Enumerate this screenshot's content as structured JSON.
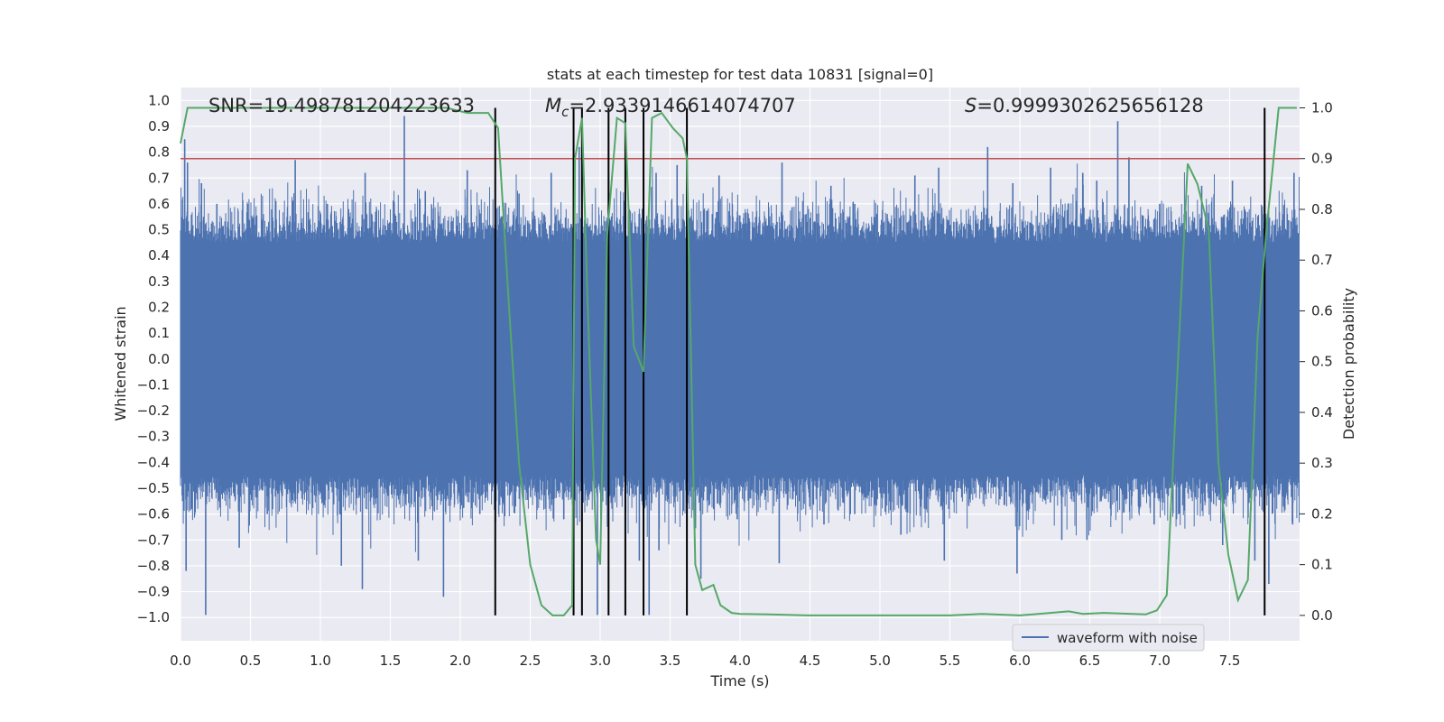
{
  "chart_data": {
    "type": "line",
    "title": "stats at each timestep for test data 10831 [signal=0]",
    "xlabel": "Time (s)",
    "ylabel": "Whitened strain",
    "y2label": "Detection probability",
    "xlim": [
      0.0,
      8.0
    ],
    "ylim": [
      -1.09,
      1.05
    ],
    "y2lim": [
      -0.05,
      1.04
    ],
    "grid": true,
    "legend_position": "bottom-right",
    "x_ticks": [
      "0.0",
      "0.5",
      "1.0",
      "1.5",
      "2.0",
      "2.5",
      "3.0",
      "3.5",
      "4.0",
      "4.5",
      "5.0",
      "5.5",
      "6.0",
      "6.5",
      "7.0",
      "7.5"
    ],
    "y_ticks": [
      "1.0",
      "0.9",
      "0.8",
      "0.7",
      "0.6",
      "0.5",
      "0.4",
      "0.3",
      "0.2",
      "0.1",
      "0.0",
      "−0.1",
      "−0.2",
      "−0.3",
      "−0.4",
      "−0.5",
      "−0.6",
      "−0.7",
      "−0.8",
      "−0.9",
      "−1.0"
    ],
    "y2_ticks": [
      "1.0",
      "0.9",
      "0.8",
      "0.7",
      "0.6",
      "0.5",
      "0.4",
      "0.3",
      "0.2",
      "0.1",
      "0.0"
    ],
    "annotations": {
      "snr": "SNR=19.498781204223633",
      "mc": "M_c=2.9339146614074707",
      "s": "S=0.9999302625656128"
    },
    "threshold": {
      "y2": 0.9,
      "color": "#c44e52"
    },
    "vertical_lines_x": [
      2.25,
      2.81,
      2.87,
      3.06,
      3.18,
      3.31,
      3.62,
      7.75
    ],
    "series": [
      {
        "name": "waveform with noise",
        "axis": "left",
        "color": "#4c72b0",
        "kind": "noise",
        "core_amplitude": 0.45,
        "spikes": [
          {
            "x": 0.03,
            "y": 0.85
          },
          {
            "x": 0.05,
            "y": 0.76
          },
          {
            "x": 0.15,
            "y": 0.68
          },
          {
            "x": 0.26,
            "y": 0.6
          },
          {
            "x": 0.48,
            "y": 0.6
          },
          {
            "x": 0.82,
            "y": 0.77
          },
          {
            "x": 1.05,
            "y": 0.6
          },
          {
            "x": 1.32,
            "y": 0.72
          },
          {
            "x": 1.6,
            "y": 0.94
          },
          {
            "x": 1.75,
            "y": 0.65
          },
          {
            "x": 2.05,
            "y": 0.73
          },
          {
            "x": 2.25,
            "y": 0.7
          },
          {
            "x": 2.42,
            "y": 0.64
          },
          {
            "x": 2.65,
            "y": 0.72
          },
          {
            "x": 2.85,
            "y": 0.82
          },
          {
            "x": 3.06,
            "y": 0.72
          },
          {
            "x": 3.4,
            "y": 0.72
          },
          {
            "x": 3.55,
            "y": 0.75
          },
          {
            "x": 3.85,
            "y": 0.71
          },
          {
            "x": 4.3,
            "y": 0.76
          },
          {
            "x": 4.65,
            "y": 0.67
          },
          {
            "x": 4.82,
            "y": 0.6
          },
          {
            "x": 5.25,
            "y": 0.71
          },
          {
            "x": 5.42,
            "y": 0.74
          },
          {
            "x": 5.77,
            "y": 0.82
          },
          {
            "x": 5.95,
            "y": 0.68
          },
          {
            "x": 6.22,
            "y": 0.74
          },
          {
            "x": 6.45,
            "y": 0.72
          },
          {
            "x": 6.55,
            "y": 0.69
          },
          {
            "x": 6.7,
            "y": 0.92
          },
          {
            "x": 6.78,
            "y": 0.78
          },
          {
            "x": 7.0,
            "y": 0.6
          },
          {
            "x": 7.3,
            "y": 0.67
          },
          {
            "x": 7.52,
            "y": 0.69
          },
          {
            "x": 7.96,
            "y": 0.72
          },
          {
            "x": 0.04,
            "y": -0.82
          },
          {
            "x": 0.18,
            "y": -0.99
          },
          {
            "x": 0.42,
            "y": -0.73
          },
          {
            "x": 0.62,
            "y": -0.6
          },
          {
            "x": 1.15,
            "y": -0.8
          },
          {
            "x": 1.3,
            "y": -0.89
          },
          {
            "x": 1.7,
            "y": -0.78
          },
          {
            "x": 1.88,
            "y": -0.92
          },
          {
            "x": 2.14,
            "y": -0.6
          },
          {
            "x": 2.74,
            "y": -0.62
          },
          {
            "x": 2.98,
            "y": -0.99
          },
          {
            "x": 3.28,
            "y": -0.78
          },
          {
            "x": 3.35,
            "y": -0.99
          },
          {
            "x": 3.42,
            "y": -0.74
          },
          {
            "x": 3.72,
            "y": -0.85
          },
          {
            "x": 3.98,
            "y": -0.62
          },
          {
            "x": 4.28,
            "y": -0.79
          },
          {
            "x": 4.6,
            "y": -0.64
          },
          {
            "x": 4.82,
            "y": -0.6
          },
          {
            "x": 5.15,
            "y": -0.68
          },
          {
            "x": 5.46,
            "y": -0.78
          },
          {
            "x": 5.98,
            "y": -0.83
          },
          {
            "x": 6.3,
            "y": -0.7
          },
          {
            "x": 6.48,
            "y": -0.7
          },
          {
            "x": 6.96,
            "y": -0.64
          },
          {
            "x": 7.12,
            "y": -0.62
          },
          {
            "x": 7.45,
            "y": -0.72
          },
          {
            "x": 7.68,
            "y": -0.78
          },
          {
            "x": 7.78,
            "y": -0.87
          },
          {
            "x": 7.95,
            "y": -0.64
          }
        ]
      },
      {
        "name": "",
        "axis": "right",
        "color": "#55a868",
        "x": [
          0.0,
          0.05,
          0.5,
          1.0,
          1.5,
          1.9,
          2.05,
          2.2,
          2.27,
          2.35,
          2.42,
          2.5,
          2.58,
          2.66,
          2.74,
          2.8,
          2.82,
          2.87,
          2.91,
          2.97,
          3.0,
          3.05,
          3.12,
          3.18,
          3.24,
          3.31,
          3.37,
          3.44,
          3.52,
          3.59,
          3.62,
          3.68,
          3.73,
          3.81,
          3.86,
          3.94,
          4.0,
          4.2,
          4.5,
          5.0,
          5.5,
          5.73,
          6.0,
          6.35,
          6.45,
          6.6,
          6.9,
          6.98,
          7.05,
          7.13,
          7.2,
          7.27,
          7.35,
          7.42,
          7.49,
          7.56,
          7.63,
          7.7,
          7.76,
          7.85,
          7.93,
          7.98
        ],
        "y": [
          0.93,
          1.0,
          1.0,
          1.0,
          1.0,
          1.0,
          0.99,
          0.99,
          0.96,
          0.6,
          0.3,
          0.1,
          0.02,
          0.0,
          0.0,
          0.02,
          0.9,
          0.98,
          0.62,
          0.15,
          0.1,
          0.75,
          0.98,
          0.97,
          0.53,
          0.48,
          0.98,
          0.99,
          0.96,
          0.94,
          0.9,
          0.1,
          0.05,
          0.06,
          0.02,
          0.005,
          0.003,
          0.002,
          0.0,
          0.0,
          0.0,
          0.003,
          0.0,
          0.008,
          0.003,
          0.005,
          0.002,
          0.01,
          0.04,
          0.5,
          0.89,
          0.85,
          0.76,
          0.3,
          0.12,
          0.03,
          0.07,
          0.55,
          0.75,
          1.0,
          1.0,
          1.0
        ]
      }
    ]
  }
}
